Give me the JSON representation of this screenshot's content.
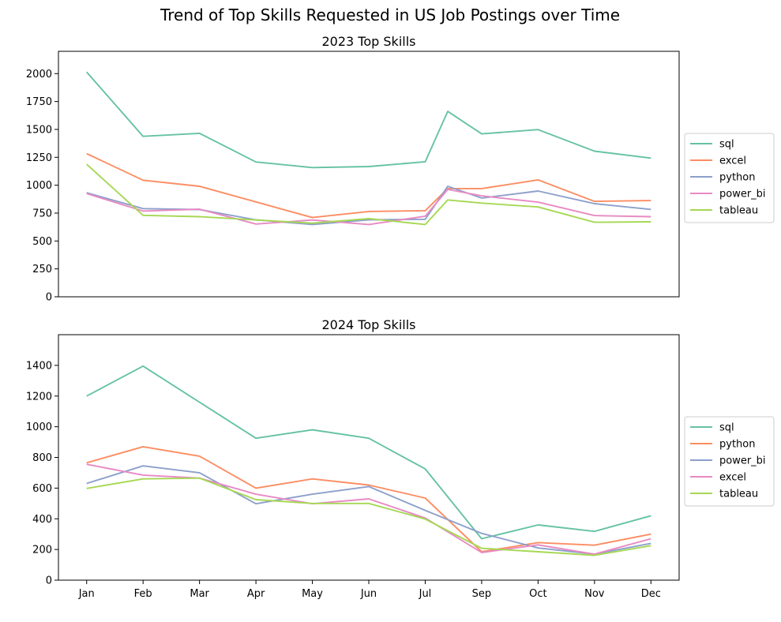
{
  "chart_data": {
    "suptitle": "Trend of Top Skills Requested in US Job Postings over Time",
    "months": [
      "Jan",
      "Feb",
      "Mar",
      "Apr",
      "May",
      "Jun",
      "Jul",
      "Sep",
      "Oct",
      "Nov",
      "Dec"
    ],
    "colors": {
      "teal": "#66c2a5",
      "orange": "#fc8d62",
      "blue": "#8da0cb",
      "pink": "#e78ac3",
      "green": "#a6d854"
    },
    "charts": [
      {
        "type": "line",
        "title": "2023 Top Skills",
        "ylim": [
          0,
          2200
        ],
        "yticks": [
          0,
          250,
          500,
          750,
          1000,
          1250,
          1500,
          1750,
          2000
        ],
        "show_xticks": false,
        "x": [
          0,
          1,
          2,
          3,
          4,
          5,
          6,
          6.4,
          7,
          8,
          9,
          10
        ],
        "legend_position": "right",
        "series": [
          {
            "name": "sql",
            "color": "#66c2a5",
            "values": [
              2015,
              1438,
              1465,
              1208,
              1158,
              1167,
              1210,
              1662,
              1460,
              1498,
              1305,
              1243
            ]
          },
          {
            "name": "excel",
            "color": "#fc8d62",
            "values": [
              1283,
              1045,
              990,
              null,
              710,
              765,
              772,
              970,
              970,
              1048,
              855,
              862
            ]
          },
          {
            "name": "python",
            "color": "#8da0cb",
            "values": [
              932,
              790,
              782,
              690,
              648,
              690,
              695,
              990,
              885,
              948,
              835,
              783
            ]
          },
          {
            "name": "power_bi",
            "color": "#e78ac3",
            "values": [
              925,
              768,
              785,
              652,
              688,
              648,
              722,
              962,
              905,
              848,
              728,
              718
            ]
          },
          {
            "name": "tableau",
            "color": "#a6d854",
            "values": [
              1188,
              730,
              718,
              688,
              660,
              700,
              648,
              868,
              840,
              805,
              668,
              672
            ]
          }
        ]
      },
      {
        "type": "line",
        "title": "2024 Top Skills",
        "ylim": [
          0,
          1600
        ],
        "yticks": [
          0,
          200,
          400,
          600,
          800,
          1000,
          1200,
          1400
        ],
        "show_xticks": true,
        "x": [
          0,
          1,
          2,
          3,
          4,
          5,
          6,
          7,
          8,
          9,
          10
        ],
        "legend_position": "right",
        "series": [
          {
            "name": "sql",
            "color": "#66c2a5",
            "values": [
              1200,
              1395,
              1160,
              925,
              980,
              925,
              725,
              270,
              360,
              318,
              420
            ]
          },
          {
            "name": "python",
            "color": "#fc8d62",
            "values": [
              765,
              870,
              808,
              600,
              660,
              620,
              535,
              185,
              245,
              228,
              300
            ]
          },
          {
            "name": "power_bi",
            "color": "#8da0cb",
            "values": [
              630,
              745,
              700,
              498,
              560,
              610,
              455,
              305,
              210,
              170,
              240
            ]
          },
          {
            "name": "excel",
            "color": "#e78ac3",
            "values": [
              755,
              685,
              665,
              560,
              498,
              530,
              405,
              180,
              230,
              170,
              270
            ]
          },
          {
            "name": "tableau",
            "color": "#a6d854",
            "values": [
              598,
              660,
              665,
              525,
              500,
              500,
              398,
              208,
              185,
              162,
              225
            ]
          }
        ]
      }
    ]
  }
}
